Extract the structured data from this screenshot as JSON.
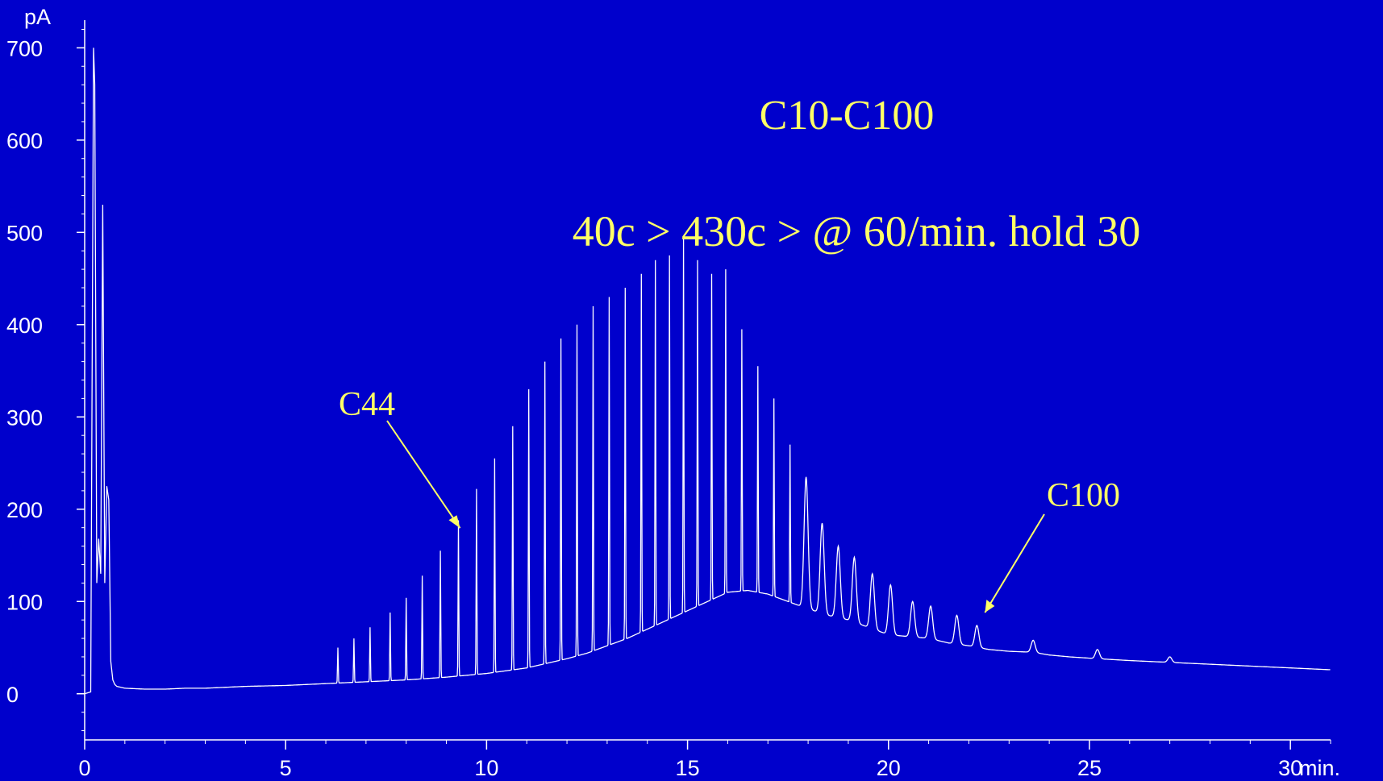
{
  "chart_data": {
    "type": "line",
    "title": "C10-C100",
    "subtitle": "40c > 430c > @ 60/min. hold 30",
    "y_unit": "pA",
    "x_unit": "min.",
    "xlim": [
      0,
      31
    ],
    "ylim": [
      -50,
      730
    ],
    "x_ticks": [
      0,
      5,
      10,
      15,
      20,
      25,
      30
    ],
    "x_tick_labels": [
      "0",
      "5",
      "10",
      "15",
      "20",
      "25",
      "30"
    ],
    "y_ticks": [
      0,
      100,
      200,
      300,
      400,
      500,
      600,
      700
    ],
    "y_tick_labels": [
      "0",
      "100",
      "200",
      "300",
      "400",
      "500",
      "600",
      "700"
    ],
    "grid": false,
    "colors": {
      "background": "#0000CC",
      "trace": "#FFFFFF",
      "axes": "#FFFFFF",
      "annotation": "#FFFF66"
    },
    "series": [
      {
        "x": [
          0.0,
          0.15,
          0.22,
          0.25,
          0.3,
          0.35,
          0.4,
          0.45,
          0.5,
          0.55,
          0.6,
          0.65,
          0.7,
          0.75,
          0.8,
          1.0,
          1.5,
          2.0,
          2.5,
          3.0,
          4.0,
          5.0,
          6.0,
          7.0,
          8.0,
          9.0,
          9.5,
          10.0,
          10.5,
          11.0,
          11.5,
          12.0,
          12.5,
          13.0,
          13.5,
          14.0,
          14.5,
          15.0,
          15.5,
          16.0,
          16.5,
          17.0,
          17.5,
          18.0,
          18.5,
          19.0,
          19.5,
          20.0,
          20.5,
          21.0,
          21.5,
          22.0,
          22.5,
          23.0,
          23.6,
          24.0,
          24.5,
          25.2,
          26.0,
          27.0,
          28.0,
          29.0,
          30.0,
          31.0
        ],
        "y": [
          0,
          2,
          700,
          660,
          120,
          168,
          130,
          530,
          120,
          225,
          210,
          35,
          15,
          10,
          8,
          6,
          5,
          5,
          6,
          6,
          8,
          9,
          11,
          13,
          15,
          18,
          20,
          22,
          25,
          28,
          33,
          38,
          44,
          52,
          60,
          70,
          80,
          90,
          100,
          110,
          112,
          108,
          100,
          92,
          85,
          80,
          72,
          64,
          62,
          60,
          55,
          52,
          48,
          46,
          45,
          42,
          40,
          38,
          36,
          34,
          32,
          30,
          28,
          26
        ]
      }
    ],
    "peaks": [
      {
        "x": 6.3,
        "y": 50
      },
      {
        "x": 6.7,
        "y": 60
      },
      {
        "x": 7.1,
        "y": 72
      },
      {
        "x": 7.6,
        "y": 88
      },
      {
        "x": 8.0,
        "y": 104
      },
      {
        "x": 8.4,
        "y": 128
      },
      {
        "x": 8.85,
        "y": 155
      },
      {
        "x": 9.3,
        "y": 188
      },
      {
        "x": 9.75,
        "y": 222
      },
      {
        "x": 10.2,
        "y": 255
      },
      {
        "x": 10.65,
        "y": 290
      },
      {
        "x": 11.05,
        "y": 330
      },
      {
        "x": 11.45,
        "y": 360
      },
      {
        "x": 11.85,
        "y": 385
      },
      {
        "x": 12.25,
        "y": 400
      },
      {
        "x": 12.65,
        "y": 420
      },
      {
        "x": 13.05,
        "y": 430
      },
      {
        "x": 13.45,
        "y": 440
      },
      {
        "x": 13.85,
        "y": 455
      },
      {
        "x": 14.2,
        "y": 470
      },
      {
        "x": 14.55,
        "y": 475
      },
      {
        "x": 14.9,
        "y": 495
      },
      {
        "x": 15.25,
        "y": 470
      },
      {
        "x": 15.6,
        "y": 455
      },
      {
        "x": 15.95,
        "y": 460
      },
      {
        "x": 16.35,
        "y": 395
      },
      {
        "x": 16.75,
        "y": 355
      },
      {
        "x": 17.15,
        "y": 320
      },
      {
        "x": 17.55,
        "y": 270
      },
      {
        "x": 17.95,
        "y": 235
      },
      {
        "x": 18.35,
        "y": 185
      },
      {
        "x": 18.75,
        "y": 160
      },
      {
        "x": 19.15,
        "y": 148
      },
      {
        "x": 19.6,
        "y": 130
      },
      {
        "x": 20.05,
        "y": 118
      },
      {
        "x": 20.6,
        "y": 100
      },
      {
        "x": 21.05,
        "y": 95
      },
      {
        "x": 21.7,
        "y": 85
      },
      {
        "x": 22.2,
        "y": 74
      },
      {
        "x": 23.6,
        "y": 58
      },
      {
        "x": 25.2,
        "y": 48
      },
      {
        "x": 27.0,
        "y": 40
      }
    ],
    "annotations": [
      {
        "text": "C44",
        "target_x": 9.3,
        "target_y": 190,
        "side": "upper-left"
      },
      {
        "text": "C100",
        "target_x": 22.4,
        "target_y": 88,
        "side": "upper-right"
      }
    ]
  }
}
